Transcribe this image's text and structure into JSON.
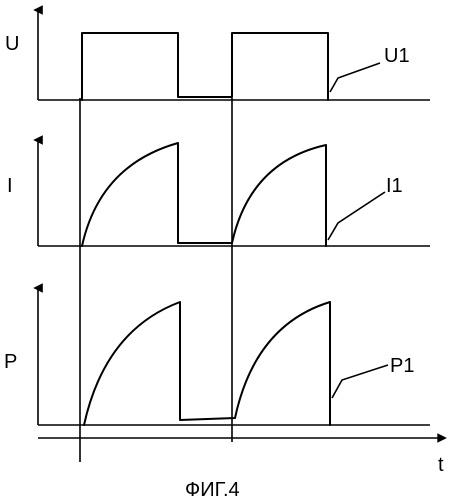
{
  "figure": {
    "caption": "ФИГ.4",
    "time_axis_label": "t",
    "plots": [
      {
        "axis_label": "U",
        "curve_label": "U1"
      },
      {
        "axis_label": "I",
        "curve_label": "I1"
      },
      {
        "axis_label": "P",
        "curve_label": "P1"
      }
    ]
  }
}
